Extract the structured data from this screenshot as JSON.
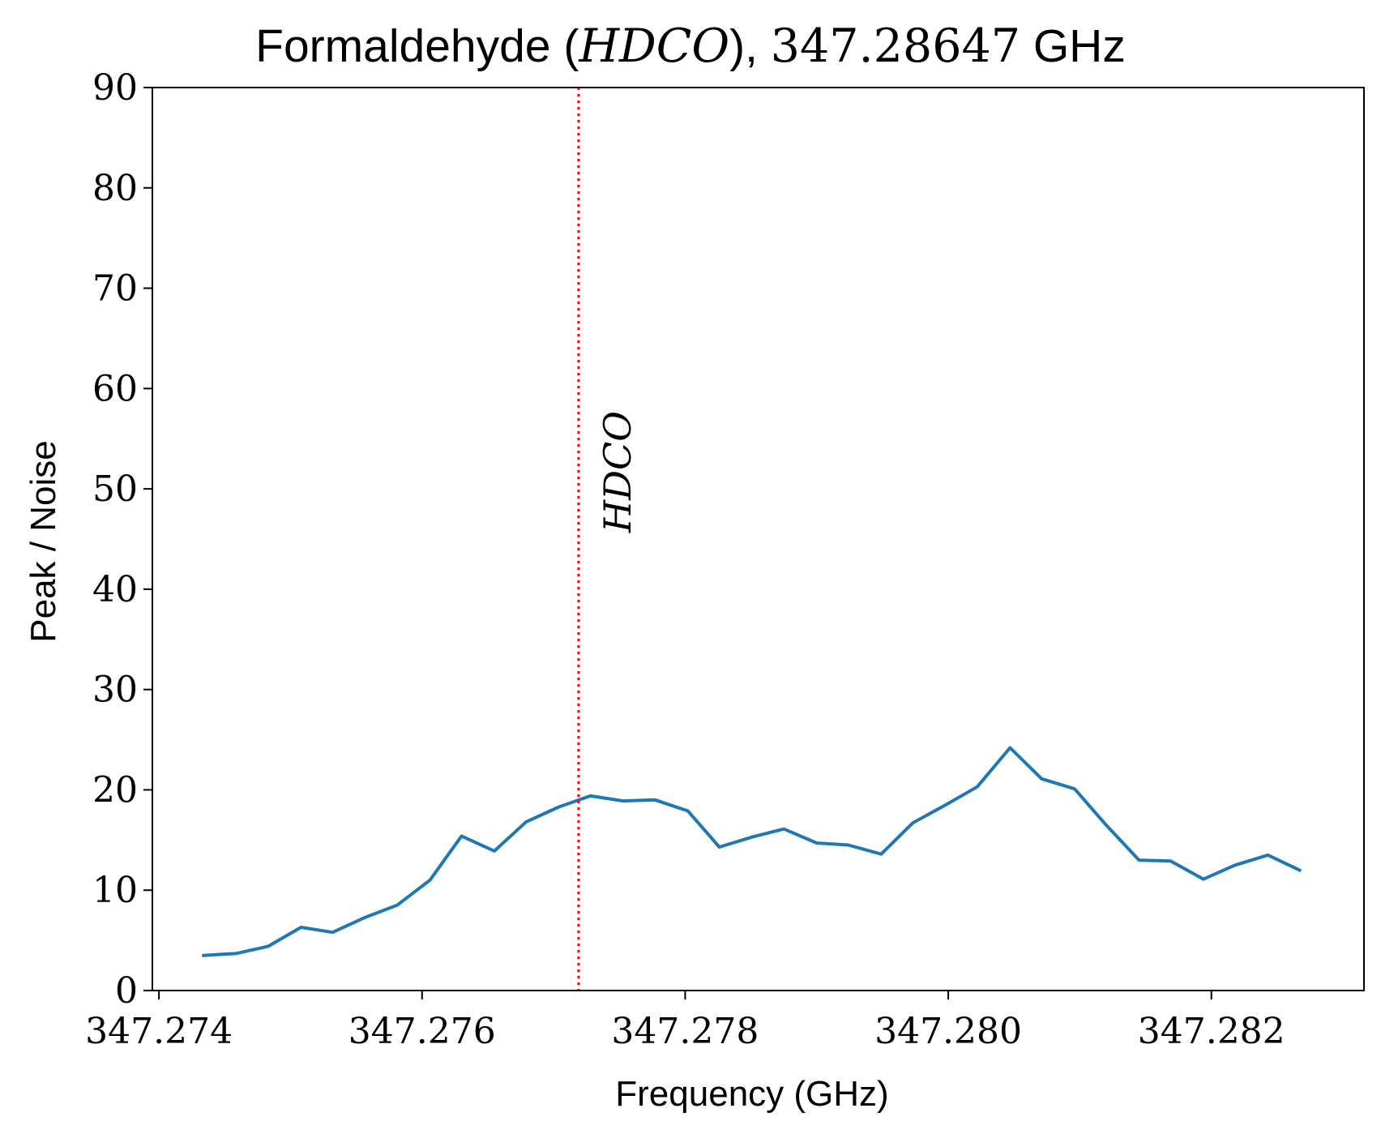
{
  "chart_data": {
    "type": "line",
    "title": {
      "prefix": "Formaldehyde (",
      "molecule": "HDCO",
      "middle": "), ",
      "frequency": "347.28647",
      "suffix": " GHz"
    },
    "xlabel": "Frequency (GHz)",
    "ylabel": "Peak / Noise",
    "xlim": [
      347.27395,
      347.28316
    ],
    "ylim": [
      0,
      90
    ],
    "xticks": [
      {
        "value": 347.274,
        "label": "347.274"
      },
      {
        "value": 347.276,
        "label": "347.276"
      },
      {
        "value": 347.278,
        "label": "347.278"
      },
      {
        "value": 347.28,
        "label": "347.280"
      },
      {
        "value": 347.282,
        "label": "347.282"
      }
    ],
    "yticks": [
      {
        "value": 0,
        "label": "0"
      },
      {
        "value": 10,
        "label": "10"
      },
      {
        "value": 20,
        "label": "20"
      },
      {
        "value": 30,
        "label": "30"
      },
      {
        "value": 40,
        "label": "40"
      },
      {
        "value": 50,
        "label": "50"
      },
      {
        "value": 60,
        "label": "60"
      },
      {
        "value": 70,
        "label": "70"
      },
      {
        "value": 80,
        "label": "80"
      },
      {
        "value": 90,
        "label": "90"
      }
    ],
    "grid": false,
    "series": [
      {
        "color": "#1f77b4",
        "x": [
          347.27434,
          347.27459,
          347.27483,
          347.27508,
          347.27532,
          347.27557,
          347.27581,
          347.27606,
          347.2763,
          347.27655,
          347.27679,
          347.27704,
          347.27728,
          347.27753,
          347.27777,
          347.27802,
          347.27826,
          347.27851,
          347.27875,
          347.279,
          347.27924,
          347.27949,
          347.27973,
          347.27998,
          347.28022,
          347.28047,
          347.28071,
          347.28096,
          347.2812,
          347.28145,
          347.28169,
          347.28194,
          347.28218,
          347.28243,
          347.28267
        ],
        "y": [
          3.5,
          3.7,
          4.4,
          6.3,
          5.8,
          7.3,
          8.5,
          11.0,
          15.4,
          13.9,
          16.8,
          18.3,
          19.4,
          18.9,
          19.0,
          17.9,
          14.3,
          15.3,
          16.1,
          14.7,
          14.5,
          13.6,
          16.7,
          18.5,
          20.3,
          24.2,
          21.1,
          20.1,
          16.5,
          13.0,
          12.9,
          11.1,
          12.5,
          13.5,
          12.0
        ]
      }
    ],
    "annotations": [
      {
        "type": "vline",
        "x": 347.27719,
        "color": "#ff0000",
        "style": "dotted",
        "label": "HDCO"
      }
    ]
  }
}
